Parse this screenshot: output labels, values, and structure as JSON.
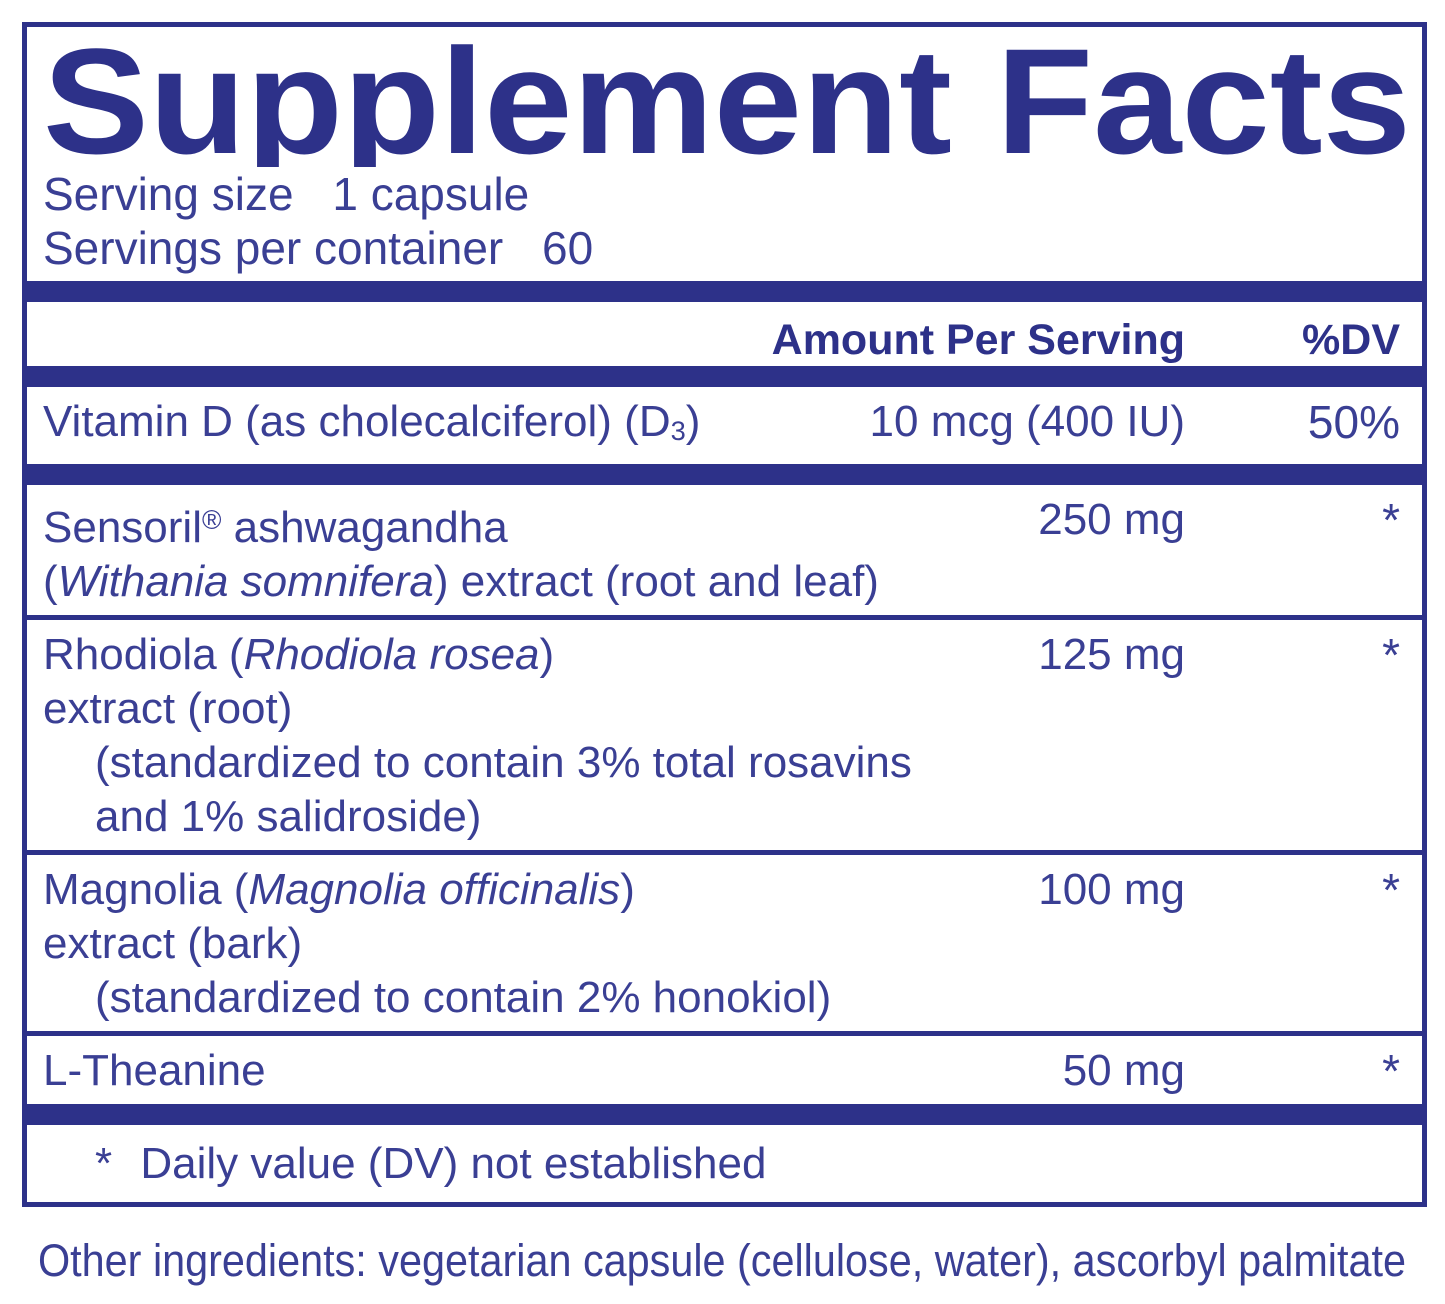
{
  "colors": {
    "navy": "#2d3189",
    "ink": "#3a3f94"
  },
  "supplement_facts": {
    "title": "Supplement Facts",
    "serving_size": {
      "label": "Serving size",
      "value": "1 capsule"
    },
    "servings_per_container": {
      "label": "Servings per container",
      "value": "60"
    },
    "columns": {
      "amount": "Amount Per Serving",
      "dv": "%DV"
    },
    "rows": [
      {
        "name": {
          "pre": "Vitamin D (as cholecalciferol) (D",
          "sub": "3",
          "post": ")"
        },
        "amount": "10 mcg (400 IU)",
        "dv": "50%"
      },
      {
        "line1": {
          "pre": "Sensoril",
          "reg": "®",
          "post": " ashwagandha"
        },
        "line2": {
          "pre": "(",
          "italic": "Withania somnifera",
          "post": ") extract (root and leaf)"
        },
        "amount": "250 mg",
        "dv": "*"
      },
      {
        "line1": {
          "pre": "Rhodiola (",
          "italic": "Rhodiola rosea",
          "post": ")"
        },
        "line2": "extract (root)",
        "line3": "(standardized to contain 3% total rosavins",
        "line4": "and 1% salidroside)",
        "amount": "125 mg",
        "dv": "*"
      },
      {
        "line1": {
          "pre": "Magnolia (",
          "italic": "Magnolia officinalis",
          "post": ")"
        },
        "line2": "extract (bark)",
        "line3": "(standardized to contain 2% honokiol)",
        "amount": "100 mg",
        "dv": "*"
      },
      {
        "line1": "L-Theanine",
        "amount": "50 mg",
        "dv": "*"
      }
    ],
    "footnote": {
      "marker": "*",
      "text": "Daily value (DV) not established"
    }
  },
  "other_ingredients": "Other ingredients: vegetarian capsule (cellulose, water), ascorbyl palmitate"
}
